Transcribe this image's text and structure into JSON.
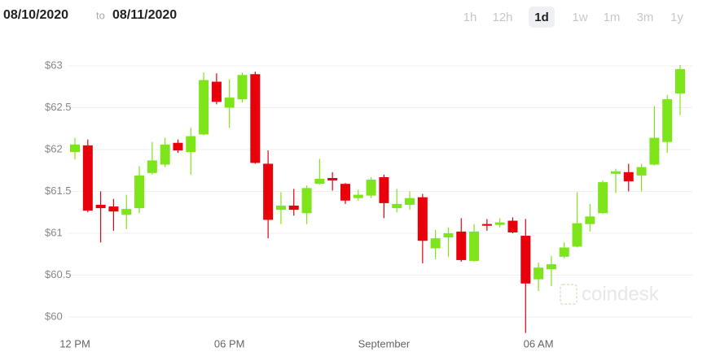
{
  "header": {
    "from": "08/10/2020",
    "separator": "to",
    "until": "08/11/2020",
    "ranges": [
      "1h",
      "12h",
      "1d",
      "1w",
      "1m",
      "3m",
      "1y"
    ],
    "active_range": 2
  },
  "chart_data": {
    "type": "candlestick",
    "watermark": "coindesk",
    "up_color": "#7ee51a",
    "down_color": "#e8000b",
    "grid": true,
    "ylim": [
      59.75,
      63.15
    ],
    "yticks": [
      {
        "value": 60,
        "label": "$60"
      },
      {
        "value": 60.5,
        "label": "$60.5"
      },
      {
        "value": 61,
        "label": "$61"
      },
      {
        "value": 61.5,
        "label": "$61.5"
      },
      {
        "value": 62,
        "label": "$62"
      },
      {
        "value": 62.5,
        "label": "$62.5"
      },
      {
        "value": 63,
        "label": "$63"
      }
    ],
    "categories": [
      "12 PM",
      null,
      null,
      null,
      null,
      null,
      null,
      null,
      null,
      null,
      null,
      null,
      "06 PM",
      null,
      null,
      null,
      null,
      null,
      null,
      null,
      null,
      null,
      null,
      null,
      "September",
      null,
      null,
      null,
      null,
      null,
      null,
      null,
      null,
      null,
      null,
      null,
      "06 AM",
      null,
      null,
      null,
      null,
      null,
      null,
      null,
      null,
      null,
      null,
      null
    ],
    "open": [
      61.97,
      62.05,
      61.34,
      61.32,
      61.22,
      61.3,
      61.72,
      61.82,
      62.08,
      61.97,
      62.18,
      62.81,
      62.5,
      62.6,
      62.9,
      61.83,
      61.28,
      61.33,
      61.24,
      61.59,
      61.66,
      61.59,
      61.42,
      61.45,
      61.67,
      61.3,
      61.34,
      61.43,
      60.82,
      60.95,
      61.02,
      60.67,
      61.11,
      61.1,
      61.15,
      60.97,
      60.45,
      60.57,
      60.72,
      60.84,
      61.11,
      61.24,
      61.71,
      61.73,
      61.69,
      61.82,
      62.09,
      62.67
    ],
    "high": [
      62.14,
      62.12,
      61.5,
      61.41,
      61.46,
      61.8,
      62.09,
      62.14,
      62.12,
      62.26,
      62.92,
      62.91,
      62.84,
      62.92,
      62.93,
      61.99,
      61.49,
      61.53,
      61.57,
      61.89,
      61.73,
      61.6,
      61.52,
      61.67,
      61.7,
      61.53,
      61.5,
      61.47,
      61.04,
      61.07,
      61.18,
      61.11,
      61.17,
      61.18,
      61.19,
      61.17,
      60.65,
      60.73,
      60.89,
      61.49,
      61.35,
      61.63,
      61.77,
      61.83,
      61.83,
      62.52,
      62.65,
      63.01
    ],
    "low": [
      61.88,
      61.25,
      60.89,
      61.03,
      61.05,
      61.24,
      61.7,
      61.79,
      61.96,
      61.7,
      62.17,
      62.54,
      62.26,
      62.56,
      61.83,
      60.94,
      61.11,
      61.21,
      61.11,
      61.58,
      61.51,
      61.35,
      61.39,
      61.42,
      61.18,
      61.25,
      61.28,
      60.64,
      60.69,
      60.72,
      60.66,
      60.66,
      61.03,
      61.07,
      61.0,
      59.81,
      60.31,
      60.37,
      60.7,
      60.83,
      61.02,
      61.23,
      61.48,
      61.5,
      61.5,
      61.81,
      61.96,
      62.41
    ],
    "close": [
      62.06,
      61.27,
      61.3,
      61.26,
      61.29,
      61.69,
      61.87,
      62.06,
      61.99,
      62.16,
      62.83,
      62.57,
      62.62,
      62.89,
      61.84,
      61.16,
      61.33,
      61.28,
      61.54,
      61.65,
      61.63,
      61.39,
      61.46,
      61.64,
      61.36,
      61.35,
      61.42,
      60.91,
      60.94,
      61.0,
      60.68,
      61.02,
      61.09,
      61.13,
      61.01,
      60.4,
      60.59,
      60.63,
      60.83,
      61.12,
      61.2,
      61.61,
      61.74,
      61.62,
      61.79,
      62.14,
      62.6,
      62.96
    ]
  }
}
